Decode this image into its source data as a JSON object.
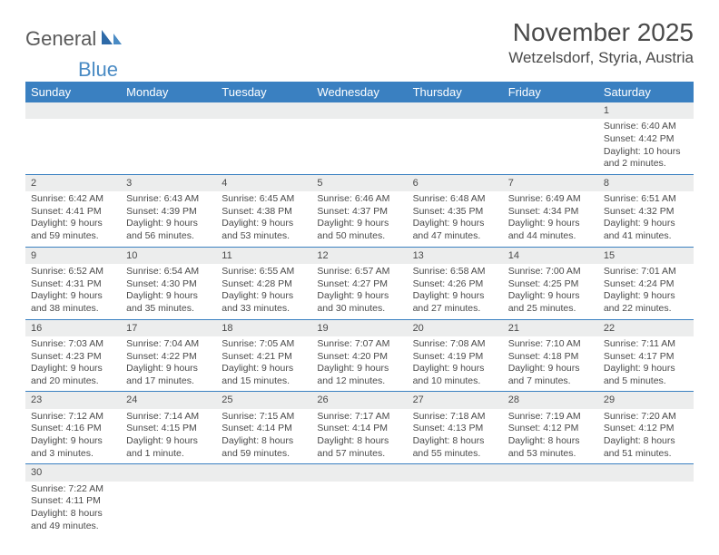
{
  "logo": {
    "part1": "General",
    "part2": "Blue"
  },
  "title": "November 2025",
  "location": "Wetzelsdorf, Styria, Austria",
  "colors": {
    "header_bg": "#3a80c1",
    "header_text": "#ffffff",
    "daynum_bg": "#eceded",
    "rule": "#3a80c1",
    "body_text": "#4a4a4a",
    "logo_blue": "#4a8bc4"
  },
  "typography": {
    "title_fontsize": 28,
    "location_fontsize": 17,
    "header_fontsize": 13,
    "cell_fontsize": 10.5
  },
  "day_headers": [
    "Sunday",
    "Monday",
    "Tuesday",
    "Wednesday",
    "Thursday",
    "Friday",
    "Saturday"
  ],
  "weeks": [
    [
      null,
      null,
      null,
      null,
      null,
      null,
      {
        "n": "1",
        "sr": "Sunrise: 6:40 AM",
        "ss": "Sunset: 4:42 PM",
        "dl": "Daylight: 10 hours and 2 minutes."
      }
    ],
    [
      {
        "n": "2",
        "sr": "Sunrise: 6:42 AM",
        "ss": "Sunset: 4:41 PM",
        "dl": "Daylight: 9 hours and 59 minutes."
      },
      {
        "n": "3",
        "sr": "Sunrise: 6:43 AM",
        "ss": "Sunset: 4:39 PM",
        "dl": "Daylight: 9 hours and 56 minutes."
      },
      {
        "n": "4",
        "sr": "Sunrise: 6:45 AM",
        "ss": "Sunset: 4:38 PM",
        "dl": "Daylight: 9 hours and 53 minutes."
      },
      {
        "n": "5",
        "sr": "Sunrise: 6:46 AM",
        "ss": "Sunset: 4:37 PM",
        "dl": "Daylight: 9 hours and 50 minutes."
      },
      {
        "n": "6",
        "sr": "Sunrise: 6:48 AM",
        "ss": "Sunset: 4:35 PM",
        "dl": "Daylight: 9 hours and 47 minutes."
      },
      {
        "n": "7",
        "sr": "Sunrise: 6:49 AM",
        "ss": "Sunset: 4:34 PM",
        "dl": "Daylight: 9 hours and 44 minutes."
      },
      {
        "n": "8",
        "sr": "Sunrise: 6:51 AM",
        "ss": "Sunset: 4:32 PM",
        "dl": "Daylight: 9 hours and 41 minutes."
      }
    ],
    [
      {
        "n": "9",
        "sr": "Sunrise: 6:52 AM",
        "ss": "Sunset: 4:31 PM",
        "dl": "Daylight: 9 hours and 38 minutes."
      },
      {
        "n": "10",
        "sr": "Sunrise: 6:54 AM",
        "ss": "Sunset: 4:30 PM",
        "dl": "Daylight: 9 hours and 35 minutes."
      },
      {
        "n": "11",
        "sr": "Sunrise: 6:55 AM",
        "ss": "Sunset: 4:28 PM",
        "dl": "Daylight: 9 hours and 33 minutes."
      },
      {
        "n": "12",
        "sr": "Sunrise: 6:57 AM",
        "ss": "Sunset: 4:27 PM",
        "dl": "Daylight: 9 hours and 30 minutes."
      },
      {
        "n": "13",
        "sr": "Sunrise: 6:58 AM",
        "ss": "Sunset: 4:26 PM",
        "dl": "Daylight: 9 hours and 27 minutes."
      },
      {
        "n": "14",
        "sr": "Sunrise: 7:00 AM",
        "ss": "Sunset: 4:25 PM",
        "dl": "Daylight: 9 hours and 25 minutes."
      },
      {
        "n": "15",
        "sr": "Sunrise: 7:01 AM",
        "ss": "Sunset: 4:24 PM",
        "dl": "Daylight: 9 hours and 22 minutes."
      }
    ],
    [
      {
        "n": "16",
        "sr": "Sunrise: 7:03 AM",
        "ss": "Sunset: 4:23 PM",
        "dl": "Daylight: 9 hours and 20 minutes."
      },
      {
        "n": "17",
        "sr": "Sunrise: 7:04 AM",
        "ss": "Sunset: 4:22 PM",
        "dl": "Daylight: 9 hours and 17 minutes."
      },
      {
        "n": "18",
        "sr": "Sunrise: 7:05 AM",
        "ss": "Sunset: 4:21 PM",
        "dl": "Daylight: 9 hours and 15 minutes."
      },
      {
        "n": "19",
        "sr": "Sunrise: 7:07 AM",
        "ss": "Sunset: 4:20 PM",
        "dl": "Daylight: 9 hours and 12 minutes."
      },
      {
        "n": "20",
        "sr": "Sunrise: 7:08 AM",
        "ss": "Sunset: 4:19 PM",
        "dl": "Daylight: 9 hours and 10 minutes."
      },
      {
        "n": "21",
        "sr": "Sunrise: 7:10 AM",
        "ss": "Sunset: 4:18 PM",
        "dl": "Daylight: 9 hours and 7 minutes."
      },
      {
        "n": "22",
        "sr": "Sunrise: 7:11 AM",
        "ss": "Sunset: 4:17 PM",
        "dl": "Daylight: 9 hours and 5 minutes."
      }
    ],
    [
      {
        "n": "23",
        "sr": "Sunrise: 7:12 AM",
        "ss": "Sunset: 4:16 PM",
        "dl": "Daylight: 9 hours and 3 minutes."
      },
      {
        "n": "24",
        "sr": "Sunrise: 7:14 AM",
        "ss": "Sunset: 4:15 PM",
        "dl": "Daylight: 9 hours and 1 minute."
      },
      {
        "n": "25",
        "sr": "Sunrise: 7:15 AM",
        "ss": "Sunset: 4:14 PM",
        "dl": "Daylight: 8 hours and 59 minutes."
      },
      {
        "n": "26",
        "sr": "Sunrise: 7:17 AM",
        "ss": "Sunset: 4:14 PM",
        "dl": "Daylight: 8 hours and 57 minutes."
      },
      {
        "n": "27",
        "sr": "Sunrise: 7:18 AM",
        "ss": "Sunset: 4:13 PM",
        "dl": "Daylight: 8 hours and 55 minutes."
      },
      {
        "n": "28",
        "sr": "Sunrise: 7:19 AM",
        "ss": "Sunset: 4:12 PM",
        "dl": "Daylight: 8 hours and 53 minutes."
      },
      {
        "n": "29",
        "sr": "Sunrise: 7:20 AM",
        "ss": "Sunset: 4:12 PM",
        "dl": "Daylight: 8 hours and 51 minutes."
      }
    ],
    [
      {
        "n": "30",
        "sr": "Sunrise: 7:22 AM",
        "ss": "Sunset: 4:11 PM",
        "dl": "Daylight: 8 hours and 49 minutes."
      },
      null,
      null,
      null,
      null,
      null,
      null
    ]
  ]
}
